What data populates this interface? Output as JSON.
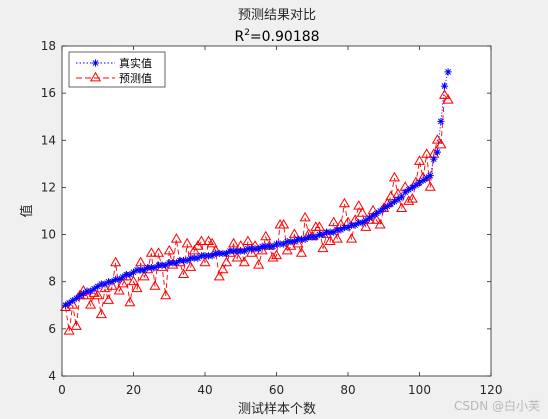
{
  "figure": {
    "watermark": "CSDN @白小芙"
  },
  "chart_data": {
    "type": "line",
    "title": "预测结果对比",
    "subtitle_prefix": "R",
    "subtitle_superscript": "2",
    "subtitle_suffix": "=0.90188",
    "xlabel": "测试样本个数",
    "ylabel": "值",
    "xlim": [
      0,
      120
    ],
    "ylim": [
      4,
      18
    ],
    "xticks": [
      0,
      20,
      40,
      60,
      80,
      100,
      120
    ],
    "yticks": [
      4,
      6,
      8,
      10,
      12,
      14,
      16,
      18
    ],
    "grid": false,
    "legend_position": "top-left",
    "series": [
      {
        "name": "真实值",
        "color": "#0000ff",
        "marker": "asterisk",
        "line": "dotted",
        "values": [
          7.0,
          7.1,
          7.2,
          7.3,
          7.4,
          7.5,
          7.6,
          7.6,
          7.7,
          7.8,
          7.9,
          7.9,
          8.0,
          8.0,
          8.1,
          8.1,
          8.2,
          8.3,
          8.3,
          8.4,
          8.5,
          8.5,
          8.5,
          8.6,
          8.6,
          8.6,
          8.7,
          8.7,
          8.7,
          8.8,
          8.8,
          8.8,
          8.9,
          8.9,
          8.9,
          9.0,
          9.0,
          9.0,
          9.1,
          9.1,
          9.1,
          9.1,
          9.2,
          9.2,
          9.2,
          9.2,
          9.3,
          9.3,
          9.3,
          9.3,
          9.3,
          9.4,
          9.4,
          9.4,
          9.4,
          9.5,
          9.5,
          9.5,
          9.5,
          9.6,
          9.6,
          9.6,
          9.7,
          9.7,
          9.7,
          9.8,
          9.8,
          9.8,
          9.9,
          9.9,
          9.9,
          10.0,
          10.0,
          10.1,
          10.1,
          10.1,
          10.2,
          10.2,
          10.3,
          10.3,
          10.4,
          10.4,
          10.5,
          10.5,
          10.6,
          10.7,
          10.8,
          10.9,
          11.0,
          11.1,
          11.2,
          11.3,
          11.4,
          11.5,
          11.6,
          11.8,
          11.9,
          12.0,
          12.1,
          12.2,
          12.3,
          12.4,
          12.5,
          13.2,
          13.5,
          14.8,
          16.3,
          16.9
        ]
      },
      {
        "name": "预测值",
        "color": "#ff0000",
        "marker": "triangle",
        "line": "dashed",
        "values": [
          6.9,
          5.9,
          7.0,
          6.1,
          7.4,
          7.6,
          7.4,
          7.0,
          7.5,
          7.4,
          6.6,
          7.7,
          7.2,
          7.8,
          8.8,
          7.6,
          7.9,
          8.2,
          7.1,
          8.0,
          7.7,
          8.8,
          8.2,
          8.5,
          9.2,
          7.8,
          9.2,
          8.6,
          7.4,
          9.3,
          8.7,
          9.8,
          8.8,
          8.3,
          9.6,
          8.6,
          9.3,
          9.5,
          9.7,
          8.8,
          9.7,
          9.6,
          9.3,
          8.2,
          8.5,
          8.8,
          9.2,
          9.6,
          9.0,
          9.5,
          8.8,
          9.7,
          9.2,
          9.5,
          8.7,
          9.3,
          9.9,
          9.5,
          9.0,
          9.1,
          10.4,
          10.4,
          9.3,
          9.5,
          10.0,
          9.6,
          9.2,
          10.7,
          10.0,
          9.9,
          10.3,
          10.3,
          9.4,
          10.0,
          9.7,
          10.5,
          9.8,
          10.4,
          11.3,
          10.5,
          9.8,
          10.6,
          11.2,
          10.9,
          10.3,
          10.6,
          11.0,
          10.6,
          10.4,
          11.1,
          11.3,
          11.6,
          12.4,
          11.7,
          11.1,
          12.0,
          11.4,
          11.5,
          12.2,
          13.1,
          12.4,
          13.4,
          12.0,
          13.4,
          14.0,
          13.8,
          15.9,
          15.7
        ]
      }
    ]
  }
}
